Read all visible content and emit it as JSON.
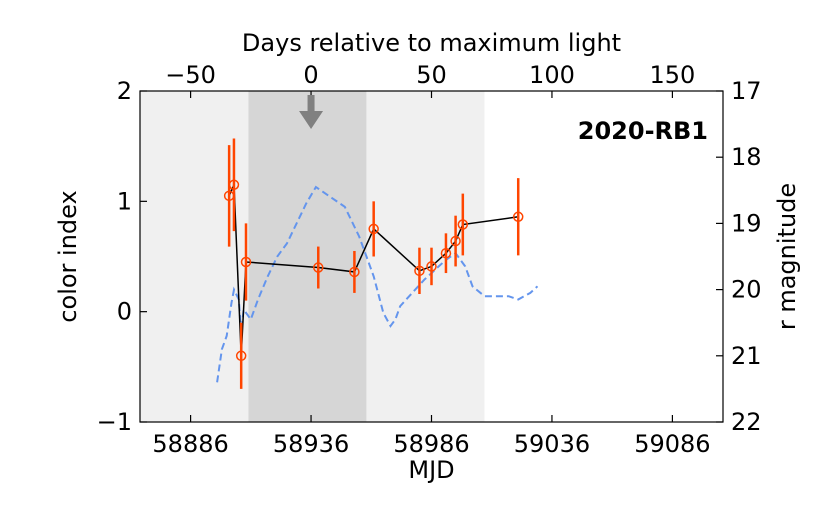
{
  "chart_data": {
    "type": "line",
    "title": "",
    "annotation": "2020-RB1",
    "xlabel": "MJD",
    "ylabel": "color index",
    "y2label": "r magnitude",
    "top_xlabel": "Days relative to maximum light",
    "xlim": [
      58865,
      59107
    ],
    "ylim": [
      -1,
      2
    ],
    "y2lim": [
      22,
      17
    ],
    "max_light_mjd": 58936,
    "x_ticks": [
      58886,
      58936,
      58986,
      59036,
      59086
    ],
    "y_ticks": [
      -1,
      0,
      1,
      2
    ],
    "y2_ticks": [
      17,
      18,
      19,
      20,
      21,
      22
    ],
    "top_ticks": [
      -50,
      0,
      50,
      100,
      150
    ],
    "shaded_regions": [
      {
        "x0": 58865,
        "x1": 58910,
        "shade": "#f0f0f0"
      },
      {
        "x0": 58910,
        "x1": 58959,
        "shade": "#d6d6d6"
      },
      {
        "x0": 58959,
        "x1": 59008,
        "shade": "#f0f0f0"
      }
    ],
    "series": [
      {
        "kind": "color-index",
        "line_color": "#000000",
        "marker_color": "#ff4500",
        "errorbar_color": "#ff4500",
        "points": [
          {
            "x": 58902,
            "y": 1.05,
            "err": 0.46
          },
          {
            "x": 58904,
            "y": 1.15,
            "err": 0.42
          },
          {
            "x": 58907,
            "y": -0.4,
            "err": 0.3
          },
          {
            "x": 58909,
            "y": 0.45,
            "err": 0.35
          },
          {
            "x": 58939,
            "y": 0.4,
            "err": 0.19
          },
          {
            "x": 58954,
            "y": 0.36,
            "err": 0.19
          },
          {
            "x": 58962,
            "y": 0.75,
            "err": 0.25
          },
          {
            "x": 58981,
            "y": 0.37,
            "err": 0.21
          },
          {
            "x": 58986,
            "y": 0.41,
            "err": 0.17
          },
          {
            "x": 58992,
            "y": 0.53,
            "err": 0.18
          },
          {
            "x": 58996,
            "y": 0.64,
            "err": 0.23
          },
          {
            "x": 58999,
            "y": 0.79,
            "err": 0.28
          },
          {
            "x": 59022,
            "y": 0.86,
            "err": 0.35
          }
        ]
      },
      {
        "kind": "r-magnitude",
        "axis": "right",
        "line_color": "#6495ed",
        "dashed": true,
        "points": [
          {
            "x": 58897,
            "y": 21.4
          },
          {
            "x": 58899,
            "y": 20.9
          },
          {
            "x": 58901,
            "y": 20.7
          },
          {
            "x": 58903,
            "y": 20.2
          },
          {
            "x": 58904,
            "y": 20.0
          },
          {
            "x": 58906,
            "y": 20.15
          },
          {
            "x": 58907,
            "y": 20.65
          },
          {
            "x": 58908,
            "y": 20.3
          },
          {
            "x": 58911,
            "y": 20.45
          },
          {
            "x": 58914,
            "y": 20.15
          },
          {
            "x": 58918,
            "y": 19.8
          },
          {
            "x": 58922,
            "y": 19.5
          },
          {
            "x": 58926,
            "y": 19.3
          },
          {
            "x": 58930,
            "y": 19.0
          },
          {
            "x": 58934,
            "y": 18.7
          },
          {
            "x": 58938,
            "y": 18.45
          },
          {
            "x": 58944,
            "y": 18.6
          },
          {
            "x": 58950,
            "y": 18.75
          },
          {
            "x": 58956,
            "y": 19.2
          },
          {
            "x": 58962,
            "y": 19.8
          },
          {
            "x": 58966,
            "y": 20.35
          },
          {
            "x": 58969,
            "y": 20.55
          },
          {
            "x": 58971,
            "y": 20.45
          },
          {
            "x": 58973,
            "y": 20.25
          },
          {
            "x": 58978,
            "y": 20.05
          },
          {
            "x": 58983,
            "y": 19.85
          },
          {
            "x": 58986,
            "y": 19.75
          },
          {
            "x": 58989,
            "y": 19.65
          },
          {
            "x": 58992,
            "y": 19.55
          },
          {
            "x": 58996,
            "y": 19.45
          },
          {
            "x": 59000,
            "y": 19.65
          },
          {
            "x": 59003,
            "y": 19.95
          },
          {
            "x": 59008,
            "y": 20.1
          },
          {
            "x": 59014,
            "y": 20.1
          },
          {
            "x": 59018,
            "y": 20.1
          },
          {
            "x": 59022,
            "y": 20.15
          },
          {
            "x": 59027,
            "y": 20.05
          },
          {
            "x": 59030,
            "y": 19.95
          }
        ]
      }
    ],
    "max_light_marker": {
      "x": 58936,
      "color": "#808080"
    }
  }
}
